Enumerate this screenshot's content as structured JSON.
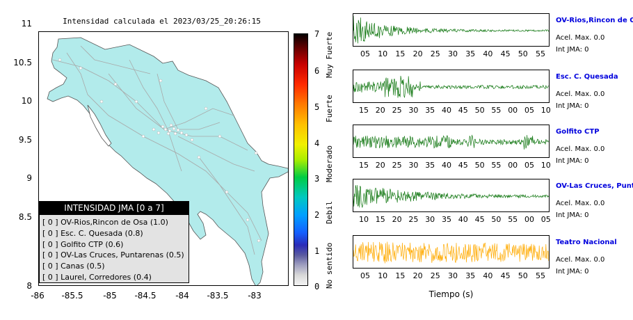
{
  "map": {
    "title": "Intensidad calculada el 2023/03/25_20:26:15",
    "y_ticks": [
      "11",
      "10.5",
      "10",
      "9.5",
      "9",
      "8.5",
      "8"
    ],
    "x_ticks": [
      "-86",
      "-85.5",
      "-85",
      "-84.5",
      "-84",
      "-83.5",
      "-83"
    ],
    "land_color": "#b2ebeb",
    "road_color": "#a8a8a8"
  },
  "colorbar": {
    "ticks": [
      "7",
      "6",
      "5",
      "4",
      "3",
      "2",
      "1",
      "0"
    ],
    "labels": [
      "Muy Fuerte",
      "Fuerte",
      "Moderado",
      "Debil",
      "No sentido"
    ]
  },
  "legend": {
    "title": "INTENSIDAD JMA [0 a 7]",
    "items": [
      "[ 0 ]  OV-Rios,Rincon de Osa (1.0)",
      "[ 0 ]  Esc. C. Quesada (0.8)",
      "[ 0 ]  Golfito CTP (0.6)",
      "[ 0 ]  OV-Las Cruces, Puntarenas (0.5)",
      "[ 0 ]  Canas (0.5)",
      "[ 0 ]  Laurel, Corredores (0.4)"
    ]
  },
  "traces": {
    "xlabel": "Tiempo (s)",
    "stations": [
      {
        "name": "OV-Rios,Rincon de Osa",
        "acel": "Acel. Max. 0.0",
        "jma": "Int JMA: 0",
        "color": "#117711",
        "ticks": [
          "05",
          "10",
          "15",
          "20",
          "25",
          "30",
          "35",
          "40",
          "45",
          "50",
          "55"
        ]
      },
      {
        "name": "Esc. C. Quesada",
        "acel": "Acel. Max. 0.0",
        "jma": "Int JMA: 0",
        "color": "#117711",
        "ticks": [
          "15",
          "20",
          "25",
          "30",
          "35",
          "40",
          "45",
          "50",
          "55",
          "00",
          "05",
          "10"
        ]
      },
      {
        "name": "Golfito CTP",
        "acel": "Acel. Max. 0.0",
        "jma": "Int JMA: 0",
        "color": "#117711",
        "ticks": [
          "15",
          "20",
          "25",
          "30",
          "35",
          "40",
          "45",
          "50",
          "55",
          "00",
          "05",
          "10"
        ]
      },
      {
        "name": "OV-Las Cruces, Puntarenas",
        "acel": "Acel. Max. 0.0",
        "jma": "Int JMA: 0",
        "color": "#117711",
        "ticks": [
          "10",
          "15",
          "20",
          "25",
          "30",
          "35",
          "40",
          "45",
          "50",
          "55",
          "00",
          "05"
        ]
      },
      {
        "name": "Teatro Nacional",
        "acel": "Acel. Max. 0.0",
        "jma": "Int JMA: 0",
        "color": "#ffaa00",
        "ticks": [
          "05",
          "10",
          "15",
          "20",
          "25",
          "30",
          "35",
          "40",
          "45",
          "50",
          "55"
        ]
      }
    ]
  },
  "chart_data": {
    "type": "scatter",
    "title": "Intensidad calculada el 2023/03/25_20:26:15",
    "xlabel": "",
    "ylabel": "",
    "xlim": [
      -86,
      -82.5
    ],
    "ylim": [
      8,
      11.3
    ],
    "colorbar_range": [
      0,
      7
    ],
    "legend_placement": "bottom-left",
    "grid": false
  }
}
